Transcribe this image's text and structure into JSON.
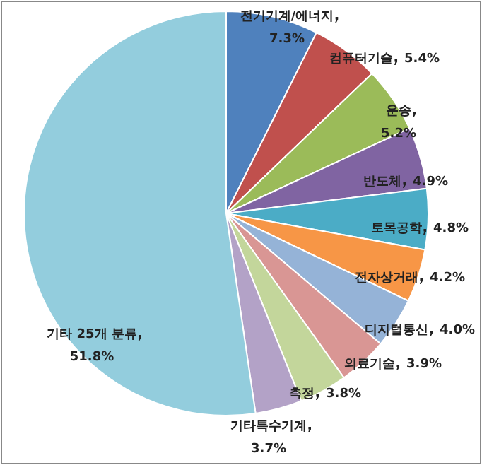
{
  "chart_data": {
    "type": "pie",
    "categories": [
      "전기기계/에너지",
      "컴퓨터기술",
      "운송",
      "반도체",
      "토목공학",
      "전자상거래",
      "디지털통신",
      "의료기술",
      "측정",
      "기타특수기계",
      "기타 25개 분류"
    ],
    "values": [
      7.3,
      5.4,
      5.2,
      4.9,
      4.8,
      4.2,
      4.0,
      3.9,
      3.8,
      3.7,
      51.8
    ],
    "colors": [
      "#4f81bd",
      "#c0504d",
      "#9bbb59",
      "#8064a2",
      "#4bacc6",
      "#f79646",
      "#95b3d7",
      "#d99694",
      "#c3d69b",
      "#b3a2c7",
      "#93cddd"
    ],
    "value_labels": [
      "7.3%",
      "5.4%",
      "5.2%",
      "4.9%",
      "4.8%",
      "4.2%",
      "4.0%",
      "3.9%",
      "3.8%",
      "3.7%",
      "51.8%"
    ]
  }
}
